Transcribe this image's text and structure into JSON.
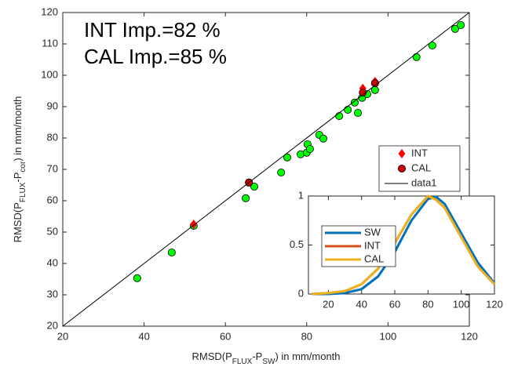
{
  "chart_data": [
    {
      "type": "scatter",
      "annotations": [
        "INT Imp.=82 %",
        "CAL Imp.=85 %"
      ],
      "xlabel_parts": [
        "RMSD(P",
        "FLUX",
        "-P",
        "SW",
        ") in mm/month"
      ],
      "ylabel_parts": [
        "RMSD(P",
        "FLUX",
        "-P",
        "cor",
        ") in mm/month"
      ],
      "xlim": [
        20,
        120
      ],
      "ylim": [
        20,
        120
      ],
      "xticks": [
        20,
        40,
        60,
        80,
        100,
        120
      ],
      "yticks": [
        20,
        30,
        40,
        50,
        60,
        70,
        80,
        90,
        100,
        110,
        120
      ],
      "series": [
        {
          "color": "#00ff00",
          "marker": "circle",
          "x": [
            38.3,
            46.8,
            52.2,
            65,
            65.8,
            67.1,
            73.7,
            75.2,
            78.5,
            80,
            80.2,
            80.8,
            83.1,
            84.1,
            88,
            90.1,
            91.8,
            92.6,
            93.6,
            94.9,
            96.8,
            96.8,
            107,
            110.9,
            116.5,
            117.9
          ],
          "values": [
            35.3,
            43.5,
            52,
            60.8,
            65.8,
            64.5,
            69,
            73.8,
            74.8,
            75.3,
            78,
            76.5,
            81,
            79.8,
            87,
            89,
            91.3,
            88,
            92.8,
            94,
            95.3,
            97.5,
            105.8,
            109.5,
            114.8,
            116
          ]
        },
        {
          "name": "INT",
          "color": "#ff0000",
          "marker": "diamond",
          "x": [
            52.2,
            93.8,
            96.8
          ],
          "values": [
            52.5,
            95.8,
            98
          ]
        },
        {
          "name": "CAL",
          "color": "#cc0000",
          "marker": "circle",
          "x": [
            65.8,
            93.8,
            96.8
          ],
          "values": [
            65.8,
            94.5,
            97.5
          ]
        },
        {
          "name": "data1",
          "color": "#000000",
          "marker": "line",
          "x": [
            20,
            120
          ],
          "values": [
            20,
            120
          ]
        }
      ]
    },
    {
      "type": "line",
      "xlim": [
        8,
        120
      ],
      "ylim": [
        0,
        1
      ],
      "xticks": [
        20,
        40,
        60,
        80,
        100,
        120
      ],
      "yticks": [
        0,
        0.5,
        1
      ],
      "x": [
        10,
        20,
        30,
        40,
        50,
        60,
        70,
        80,
        85,
        90,
        100,
        110,
        120
      ],
      "series": [
        {
          "name": "SW",
          "color": "#0072bd",
          "values": [
            0,
            0,
            0.01,
            0.05,
            0.18,
            0.43,
            0.75,
            0.97,
            0.99,
            0.92,
            0.62,
            0.32,
            0.11
          ]
        },
        {
          "name": "INT",
          "color": "#d95319",
          "values": [
            0,
            0.01,
            0.03,
            0.1,
            0.26,
            0.52,
            0.81,
            1,
            0.96,
            0.88,
            0.58,
            0.28,
            0.1
          ]
        },
        {
          "name": "CAL",
          "color": "#edb120",
          "values": [
            0,
            0.01,
            0.03,
            0.1,
            0.26,
            0.52,
            0.81,
            1,
            0.96,
            0.88,
            0.58,
            0.28,
            0.1
          ]
        }
      ]
    }
  ]
}
